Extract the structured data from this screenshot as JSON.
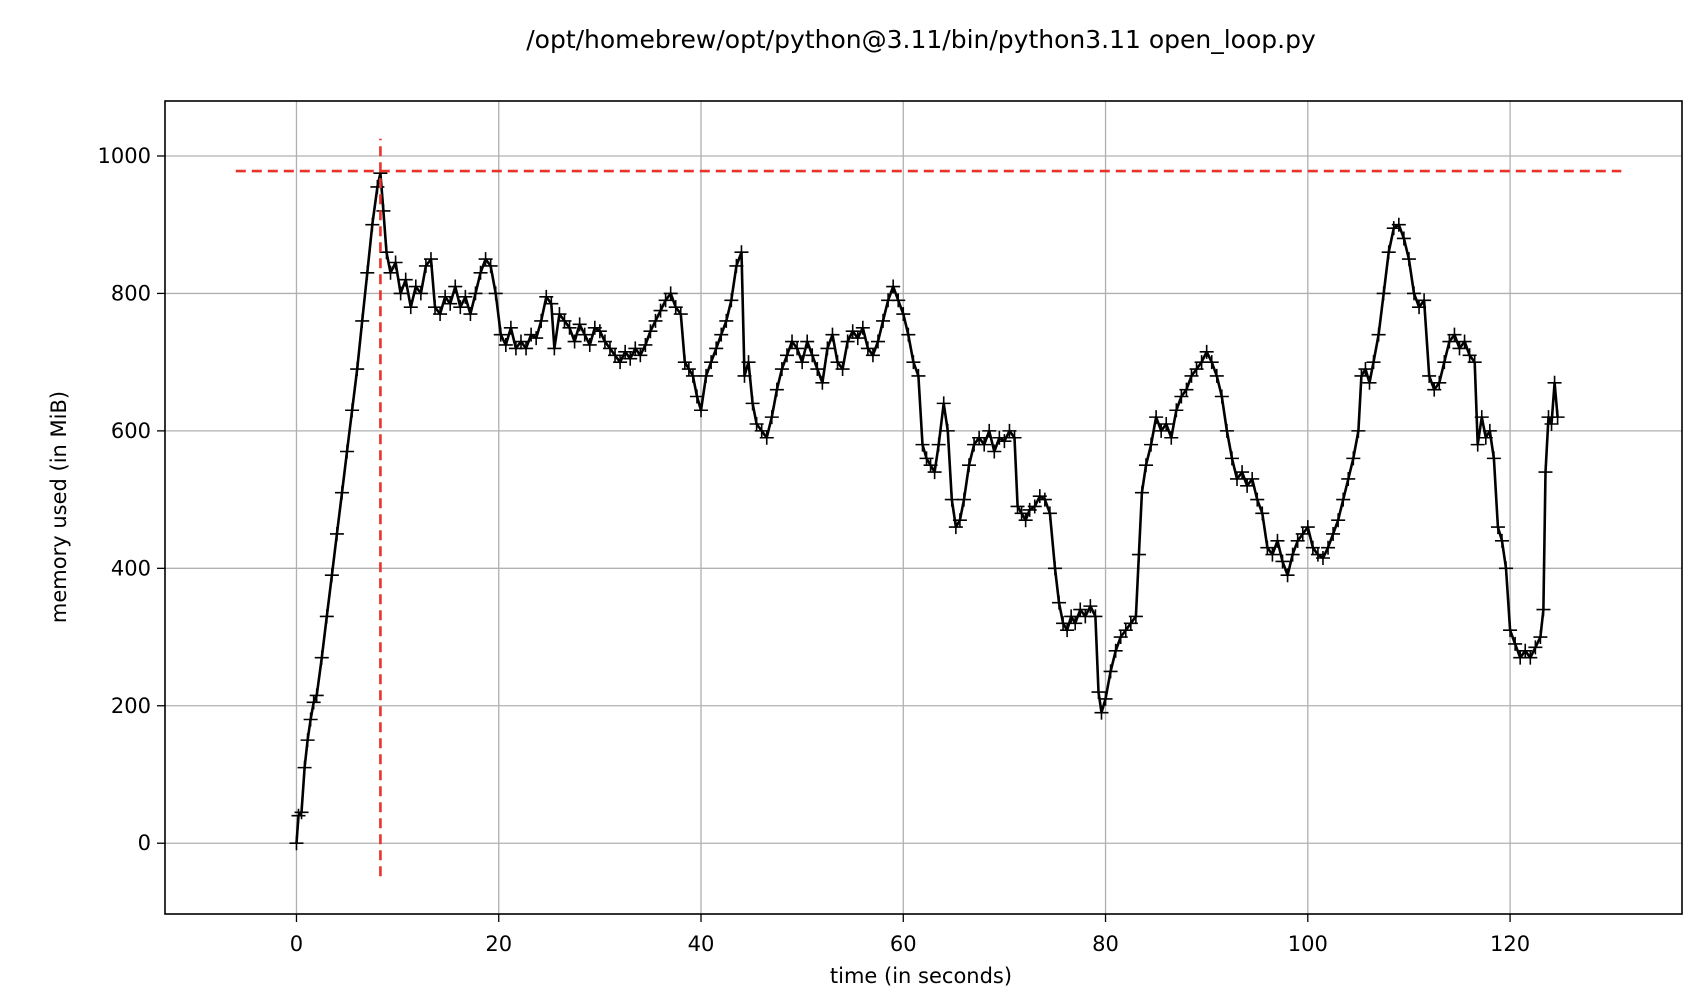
{
  "chart_data": {
    "type": "line",
    "title": "/opt/homebrew/opt/python@3.11/bin/python3.11 open_loop.py",
    "xlabel": "time (in seconds)",
    "ylabel": "memory used (in MiB)",
    "xlim": [
      -13,
      137
    ],
    "ylim": [
      -103,
      1080
    ],
    "xticks": [
      0,
      20,
      40,
      60,
      80,
      100,
      120
    ],
    "yticks": [
      0,
      200,
      400,
      600,
      800,
      1000
    ],
    "grid": true,
    "legend": "none",
    "series": [
      {
        "color": "#000000",
        "marker": "+",
        "points": [
          [
            0,
            0
          ],
          [
            0.2,
            40
          ],
          [
            0.5,
            45
          ],
          [
            0.8,
            110
          ],
          [
            1.1,
            150
          ],
          [
            1.4,
            180
          ],
          [
            1.7,
            205
          ],
          [
            2,
            215
          ],
          [
            2.5,
            270
          ],
          [
            3,
            330
          ],
          [
            3.5,
            390
          ],
          [
            4,
            450
          ],
          [
            4.5,
            510
          ],
          [
            5,
            570
          ],
          [
            5.5,
            630
          ],
          [
            6,
            690
          ],
          [
            6.5,
            760
          ],
          [
            7,
            830
          ],
          [
            7.5,
            900
          ],
          [
            8,
            955
          ],
          [
            8.3,
            975
          ],
          [
            8.6,
            920
          ],
          [
            8.9,
            860
          ],
          [
            9.3,
            830
          ],
          [
            9.8,
            845
          ],
          [
            10.3,
            800
          ],
          [
            10.8,
            820
          ],
          [
            11.3,
            780
          ],
          [
            11.8,
            810
          ],
          [
            12.3,
            800
          ],
          [
            12.8,
            840
          ],
          [
            13.3,
            850
          ],
          [
            13.7,
            780
          ],
          [
            14.2,
            770
          ],
          [
            14.7,
            795
          ],
          [
            15.2,
            785
          ],
          [
            15.7,
            810
          ],
          [
            16.2,
            780
          ],
          [
            16.7,
            795
          ],
          [
            17.2,
            770
          ],
          [
            17.7,
            800
          ],
          [
            18.2,
            830
          ],
          [
            18.7,
            850
          ],
          [
            19.2,
            840
          ],
          [
            19.7,
            800
          ],
          [
            20.2,
            740
          ],
          [
            20.7,
            725
          ],
          [
            21.2,
            750
          ],
          [
            21.7,
            720
          ],
          [
            22.2,
            730
          ],
          [
            22.7,
            720
          ],
          [
            23.2,
            740
          ],
          [
            23.7,
            735
          ],
          [
            24.2,
            760
          ],
          [
            24.7,
            795
          ],
          [
            25.2,
            785
          ],
          [
            25.5,
            720
          ],
          [
            26,
            770
          ],
          [
            26.5,
            760
          ],
          [
            27,
            750
          ],
          [
            27.5,
            730
          ],
          [
            28,
            755
          ],
          [
            28.5,
            740
          ],
          [
            29,
            725
          ],
          [
            29.5,
            750
          ],
          [
            30,
            745
          ],
          [
            30.5,
            730
          ],
          [
            31,
            720
          ],
          [
            31.5,
            710
          ],
          [
            32,
            700
          ],
          [
            32.5,
            715
          ],
          [
            33,
            705
          ],
          [
            33.5,
            720
          ],
          [
            34,
            710
          ],
          [
            34.5,
            725
          ],
          [
            35,
            745
          ],
          [
            35.5,
            760
          ],
          [
            36,
            775
          ],
          [
            36.5,
            790
          ],
          [
            37,
            800
          ],
          [
            37.5,
            780
          ],
          [
            38,
            770
          ],
          [
            38.4,
            700
          ],
          [
            38.8,
            690
          ],
          [
            39.2,
            680
          ],
          [
            39.6,
            650
          ],
          [
            40,
            630
          ],
          [
            40.5,
            680
          ],
          [
            41,
            700
          ],
          [
            41.5,
            720
          ],
          [
            42,
            740
          ],
          [
            42.5,
            760
          ],
          [
            43,
            790
          ],
          [
            43.5,
            840
          ],
          [
            44,
            860
          ],
          [
            44.3,
            680
          ],
          [
            44.7,
            700
          ],
          [
            45.1,
            640
          ],
          [
            45.5,
            610
          ],
          [
            46,
            600
          ],
          [
            46.5,
            590
          ],
          [
            47,
            620
          ],
          [
            47.5,
            660
          ],
          [
            48,
            690
          ],
          [
            48.5,
            710
          ],
          [
            49,
            730
          ],
          [
            49.5,
            720
          ],
          [
            50,
            700
          ],
          [
            50.5,
            730
          ],
          [
            51,
            710
          ],
          [
            51.5,
            690
          ],
          [
            52,
            670
          ],
          [
            52.5,
            720
          ],
          [
            53,
            740
          ],
          [
            53.5,
            700
          ],
          [
            54,
            690
          ],
          [
            54.5,
            730
          ],
          [
            55,
            745
          ],
          [
            55.5,
            735
          ],
          [
            56,
            750
          ],
          [
            56.5,
            720
          ],
          [
            57,
            710
          ],
          [
            57.5,
            730
          ],
          [
            58,
            760
          ],
          [
            58.5,
            790
          ],
          [
            59,
            810
          ],
          [
            59.5,
            790
          ],
          [
            60,
            770
          ],
          [
            60.5,
            740
          ],
          [
            61,
            700
          ],
          [
            61.5,
            680
          ],
          [
            61.9,
            580
          ],
          [
            62.3,
            560
          ],
          [
            62.7,
            550
          ],
          [
            63.1,
            540
          ],
          [
            63.5,
            580
          ],
          [
            64,
            640
          ],
          [
            64.4,
            600
          ],
          [
            64.8,
            500
          ],
          [
            65.2,
            460
          ],
          [
            65.6,
            470
          ],
          [
            66,
            500
          ],
          [
            66.5,
            550
          ],
          [
            67,
            580
          ],
          [
            67.5,
            590
          ],
          [
            68,
            580
          ],
          [
            68.5,
            600
          ],
          [
            69,
            570
          ],
          [
            69.5,
            590
          ],
          [
            70,
            585
          ],
          [
            70.5,
            600
          ],
          [
            71,
            590
          ],
          [
            71.3,
            490
          ],
          [
            71.7,
            480
          ],
          [
            72.1,
            470
          ],
          [
            72.5,
            485
          ],
          [
            73,
            490
          ],
          [
            73.5,
            505
          ],
          [
            74,
            500
          ],
          [
            74.5,
            480
          ],
          [
            75,
            400
          ],
          [
            75.4,
            350
          ],
          [
            75.8,
            320
          ],
          [
            76.2,
            310
          ],
          [
            76.6,
            330
          ],
          [
            77,
            320
          ],
          [
            77.5,
            340
          ],
          [
            78,
            330
          ],
          [
            78.5,
            345
          ],
          [
            79,
            330
          ],
          [
            79.3,
            220
          ],
          [
            79.6,
            190
          ],
          [
            80,
            210
          ],
          [
            80.5,
            250
          ],
          [
            81,
            280
          ],
          [
            81.5,
            300
          ],
          [
            82,
            310
          ],
          [
            82.5,
            320
          ],
          [
            83,
            330
          ],
          [
            83.3,
            420
          ],
          [
            83.6,
            510
          ],
          [
            84,
            550
          ],
          [
            84.5,
            580
          ],
          [
            85,
            620
          ],
          [
            85.5,
            600
          ],
          [
            86,
            610
          ],
          [
            86.5,
            590
          ],
          [
            87,
            630
          ],
          [
            87.5,
            650
          ],
          [
            88,
            660
          ],
          [
            88.5,
            680
          ],
          [
            89,
            690
          ],
          [
            89.5,
            700
          ],
          [
            90,
            715
          ],
          [
            90.5,
            700
          ],
          [
            91,
            680
          ],
          [
            91.5,
            650
          ],
          [
            92,
            600
          ],
          [
            92.5,
            560
          ],
          [
            93,
            530
          ],
          [
            93.5,
            540
          ],
          [
            94,
            520
          ],
          [
            94.5,
            530
          ],
          [
            95,
            500
          ],
          [
            95.5,
            480
          ],
          [
            96,
            430
          ],
          [
            96.5,
            420
          ],
          [
            97,
            440
          ],
          [
            97.5,
            410
          ],
          [
            98,
            390
          ],
          [
            98.5,
            420
          ],
          [
            99,
            440
          ],
          [
            99.5,
            450
          ],
          [
            100,
            460
          ],
          [
            100.5,
            430
          ],
          [
            101,
            420
          ],
          [
            101.5,
            415
          ],
          [
            102,
            430
          ],
          [
            102.5,
            450
          ],
          [
            103,
            470
          ],
          [
            103.5,
            500
          ],
          [
            104,
            530
          ],
          [
            104.5,
            560
          ],
          [
            105,
            600
          ],
          [
            105.3,
            680
          ],
          [
            105.7,
            690
          ],
          [
            106.1,
            670
          ],
          [
            106.5,
            700
          ],
          [
            107,
            740
          ],
          [
            107.5,
            800
          ],
          [
            108,
            860
          ],
          [
            108.5,
            895
          ],
          [
            109,
            900
          ],
          [
            109.5,
            880
          ],
          [
            110,
            850
          ],
          [
            110.5,
            800
          ],
          [
            111,
            780
          ],
          [
            111.5,
            790
          ],
          [
            112,
            680
          ],
          [
            112.5,
            660
          ],
          [
            113,
            670
          ],
          [
            113.5,
            700
          ],
          [
            114,
            730
          ],
          [
            114.5,
            740
          ],
          [
            115,
            720
          ],
          [
            115.5,
            730
          ],
          [
            116,
            710
          ],
          [
            116.5,
            700
          ],
          [
            116.8,
            580
          ],
          [
            117.2,
            620
          ],
          [
            117.6,
            590
          ],
          [
            118,
            600
          ],
          [
            118.4,
            560
          ],
          [
            118.8,
            460
          ],
          [
            119.2,
            440
          ],
          [
            119.6,
            400
          ],
          [
            120,
            310
          ],
          [
            120.5,
            290
          ],
          [
            121,
            270
          ],
          [
            121.5,
            280
          ],
          [
            122,
            270
          ],
          [
            122.5,
            285
          ],
          [
            123,
            300
          ],
          [
            123.3,
            340
          ],
          [
            123.5,
            540
          ],
          [
            123.8,
            620
          ],
          [
            124.1,
            610
          ],
          [
            124.4,
            670
          ],
          [
            124.7,
            620
          ]
        ]
      }
    ],
    "annotations": [
      {
        "kind": "hline",
        "y": 978,
        "x_from": -6,
        "x_to": 131,
        "color": "#e8342a",
        "style": "dashed"
      },
      {
        "kind": "vline",
        "x": 8.3,
        "y_from": -48,
        "y_to": 1025,
        "color": "#e8342a",
        "style": "dashed"
      }
    ]
  }
}
